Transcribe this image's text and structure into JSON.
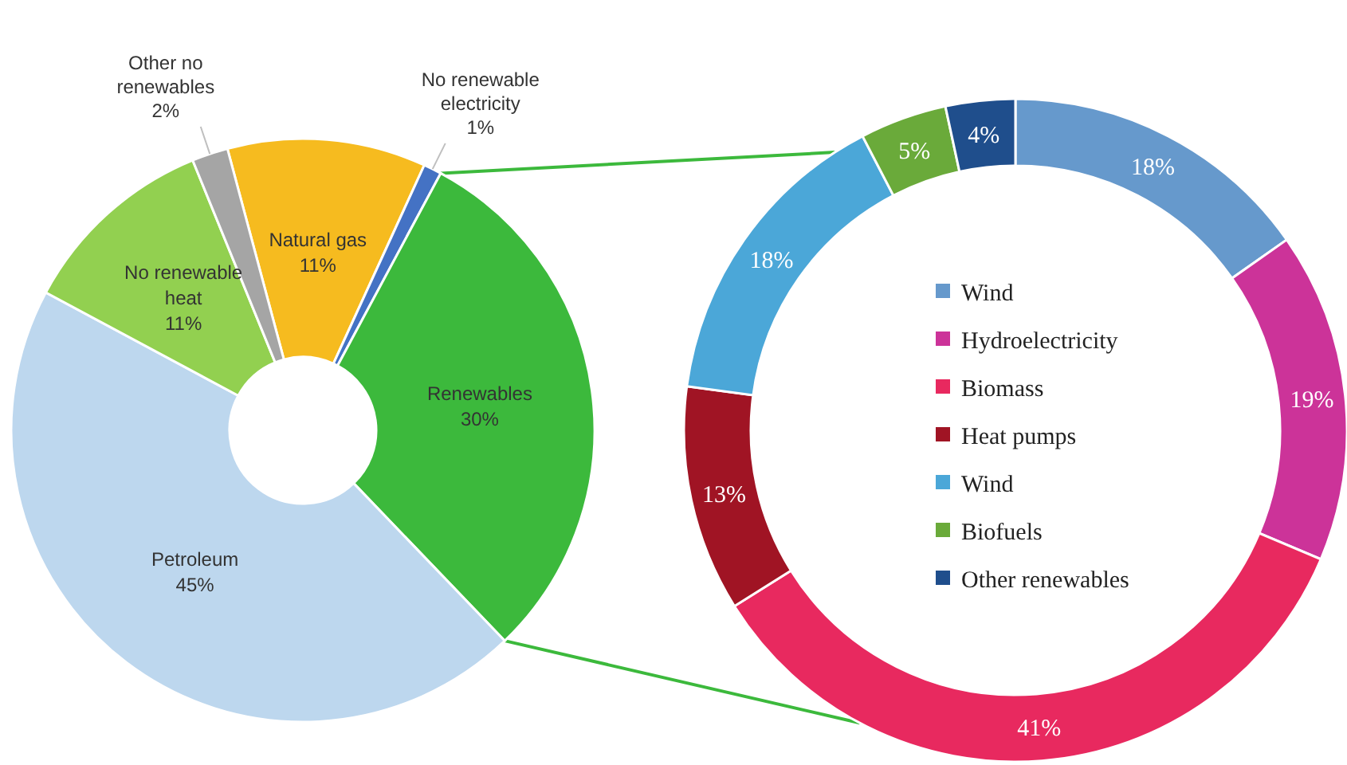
{
  "chart_data": [
    {
      "type": "donut",
      "categories": [
        "Natural gas",
        "No renewable electricity",
        "Renewables",
        "Petroleum",
        "No renewable heat",
        "Other no renewables"
      ],
      "values": [
        11,
        1,
        30,
        45,
        11,
        2
      ],
      "value_labels": [
        "11%",
        "1%",
        "30%",
        "45%",
        "11%",
        "2%"
      ],
      "colors": [
        "#f6bb1f",
        "#4472c4",
        "#3cb93c",
        "#bdd7ee",
        "#92d050",
        "#a5a5a5"
      ],
      "legend": false
    },
    {
      "type": "donut",
      "categories": [
        "Wind",
        "Hydroelectricity",
        "Biomass",
        "Heat pumps",
        "Wind",
        "Biofuels",
        "Other renewables"
      ],
      "values": [
        18,
        19,
        41,
        13,
        18,
        5,
        4
      ],
      "value_labels": [
        "18%",
        "19%",
        "41%",
        "13%",
        "18%",
        "5%",
        "4%"
      ],
      "colors": [
        "#6699cc",
        "#cc3399",
        "#e8295f",
        "#a01424",
        "#4ba7d8",
        "#6aaa3a",
        "#1f4e8c"
      ],
      "legend": "center"
    }
  ]
}
